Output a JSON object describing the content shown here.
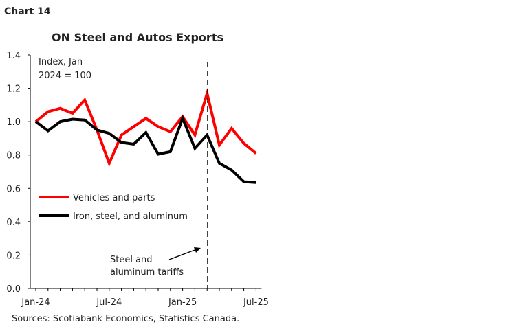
{
  "chart_label": "Chart 14",
  "chart_data": {
    "type": "line",
    "title": "ON Steel and Autos Exports",
    "ylabel": "Index, Jan 2024 = 100",
    "ylabel_lines": [
      "Index, Jan",
      "2024 = 100"
    ],
    "ylim": [
      0,
      1.4
    ],
    "yticks": [
      "0.0",
      "0.2",
      "0.4",
      "0.6",
      "0.8",
      "1.0",
      "1.2",
      "1.4"
    ],
    "x": [
      "Jan-24",
      "Feb-24",
      "Mar-24",
      "Apr-24",
      "May-24",
      "Jun-24",
      "Jul-24",
      "Aug-24",
      "Sep-24",
      "Oct-24",
      "Nov-24",
      "Dec-24",
      "Jan-25",
      "Feb-25",
      "Mar-25",
      "Apr-25",
      "May-25",
      "Jun-25",
      "Jul-25"
    ],
    "xticks": [
      "Jan-24",
      "Jul-24",
      "Jan-25",
      "Jul-25"
    ],
    "series": [
      {
        "name": "Vehicles and parts",
        "color": "#ff0000",
        "values": [
          1.0,
          1.06,
          1.08,
          1.05,
          1.13,
          0.95,
          0.75,
          0.92,
          0.97,
          1.02,
          0.97,
          0.94,
          1.03,
          0.92,
          1.17,
          0.86,
          0.96,
          0.87,
          0.81
        ]
      },
      {
        "name": "Iron, steel, and aluminum",
        "color": "#000000",
        "values": [
          1.0,
          0.945,
          1.0,
          1.015,
          1.01,
          0.95,
          0.93,
          0.875,
          0.865,
          0.935,
          0.805,
          0.82,
          1.02,
          0.84,
          0.92,
          0.75,
          0.71,
          0.64,
          0.635
        ]
      }
    ],
    "annotation": {
      "text_lines": [
        "Steel and",
        "aluminum tariffs"
      ],
      "x": "Mar-25",
      "style": "dashed vertical line"
    },
    "legend": "middle-left",
    "grid": false
  },
  "source": "Sources: Scotiabank Economics, Statistics Canada."
}
